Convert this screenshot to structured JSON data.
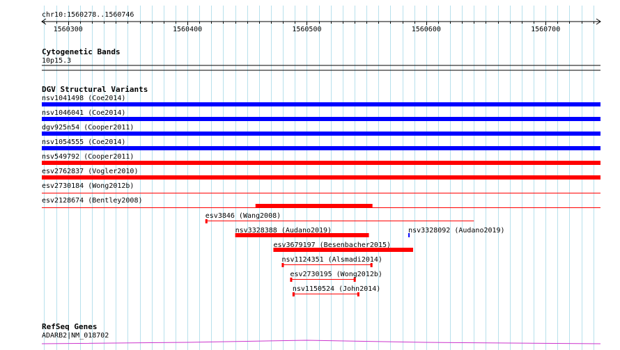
{
  "view": {
    "locus": "chr10:1560278..1560746",
    "start": 1560278,
    "end": 1560746,
    "ticks": [
      1560300,
      1560400,
      1560500,
      1560600,
      1560700
    ],
    "tick_labels": [
      "1560300",
      "1560400",
      "1560500",
      "1560600",
      "1560700"
    ]
  },
  "colors": {
    "gridline": "#b7e0ec",
    "loss": "#0000ff",
    "gain": "#ff0000",
    "gene": "#cc33cc",
    "text": "#000000"
  },
  "tracks": {
    "cytobands": {
      "title": "Cytogenetic Bands",
      "band_label": "10p15.3"
    },
    "dgv": {
      "title": "DGV Structural Variants",
      "full_span": [
        {
          "label": "nsv1041498 (Coe2014)",
          "type": "loss",
          "weight": "thick"
        },
        {
          "label": "nsv1046041 (Coe2014)",
          "type": "loss",
          "weight": "thick"
        },
        {
          "label": "dgv925n54 (Cooper2011)",
          "type": "loss",
          "weight": "thick"
        },
        {
          "label": "nsv1054555 (Coe2014)",
          "type": "loss",
          "weight": "thick"
        },
        {
          "label": "nsv549792 (Cooper2011)",
          "type": "gain",
          "weight": "thick"
        },
        {
          "label": "esv2762837 (Vogler2010)",
          "type": "gain",
          "weight": "thick"
        },
        {
          "label": "esv2730184 (Wong2012b)",
          "type": "gain",
          "weight": "thin"
        },
        {
          "label": "esv2128674 (Bentley2008)",
          "type": "gain",
          "weight": "thin"
        }
      ],
      "partial": [
        {
          "label": "",
          "type": "gain",
          "style": "thick",
          "start": 1560457,
          "end": 1560555
        },
        {
          "label": "esv3846 (Wang2008)",
          "type": "gain",
          "style": "line",
          "start": 1560415,
          "end": 1560640,
          "caps": [
            "start"
          ]
        },
        {
          "label": "nsv3328388 (Audano2019)",
          "type": "gain",
          "style": "thick",
          "start": 1560440,
          "end": 1560552
        },
        {
          "label": "nsv3328092 (Audano2019)",
          "type": "loss",
          "style": "tick",
          "start": 1560585,
          "end": 1560586
        },
        {
          "label": "esv3679197 (Besenbacher2015)",
          "type": "gain",
          "style": "thick",
          "start": 1560472,
          "end": 1560589
        },
        {
          "label": "nsv1124351 (Alsmadi2014)",
          "type": "gain",
          "style": "line",
          "start": 1560479,
          "end": 1560555,
          "caps": [
            "start",
            "end"
          ]
        },
        {
          "label": "esv2730195 (Wong2012b)",
          "type": "gain",
          "style": "line",
          "start": 1560486,
          "end": 1560541,
          "caps": [
            "start",
            "end"
          ]
        },
        {
          "label": "nsv1150524 (John2014)",
          "type": "gain",
          "style": "line",
          "start": 1560488,
          "end": 1560544,
          "caps": [
            "start",
            "end"
          ]
        }
      ]
    },
    "refseq": {
      "title": "RefSeq Genes",
      "gene_label": "ADARB2|NM_018702"
    }
  }
}
